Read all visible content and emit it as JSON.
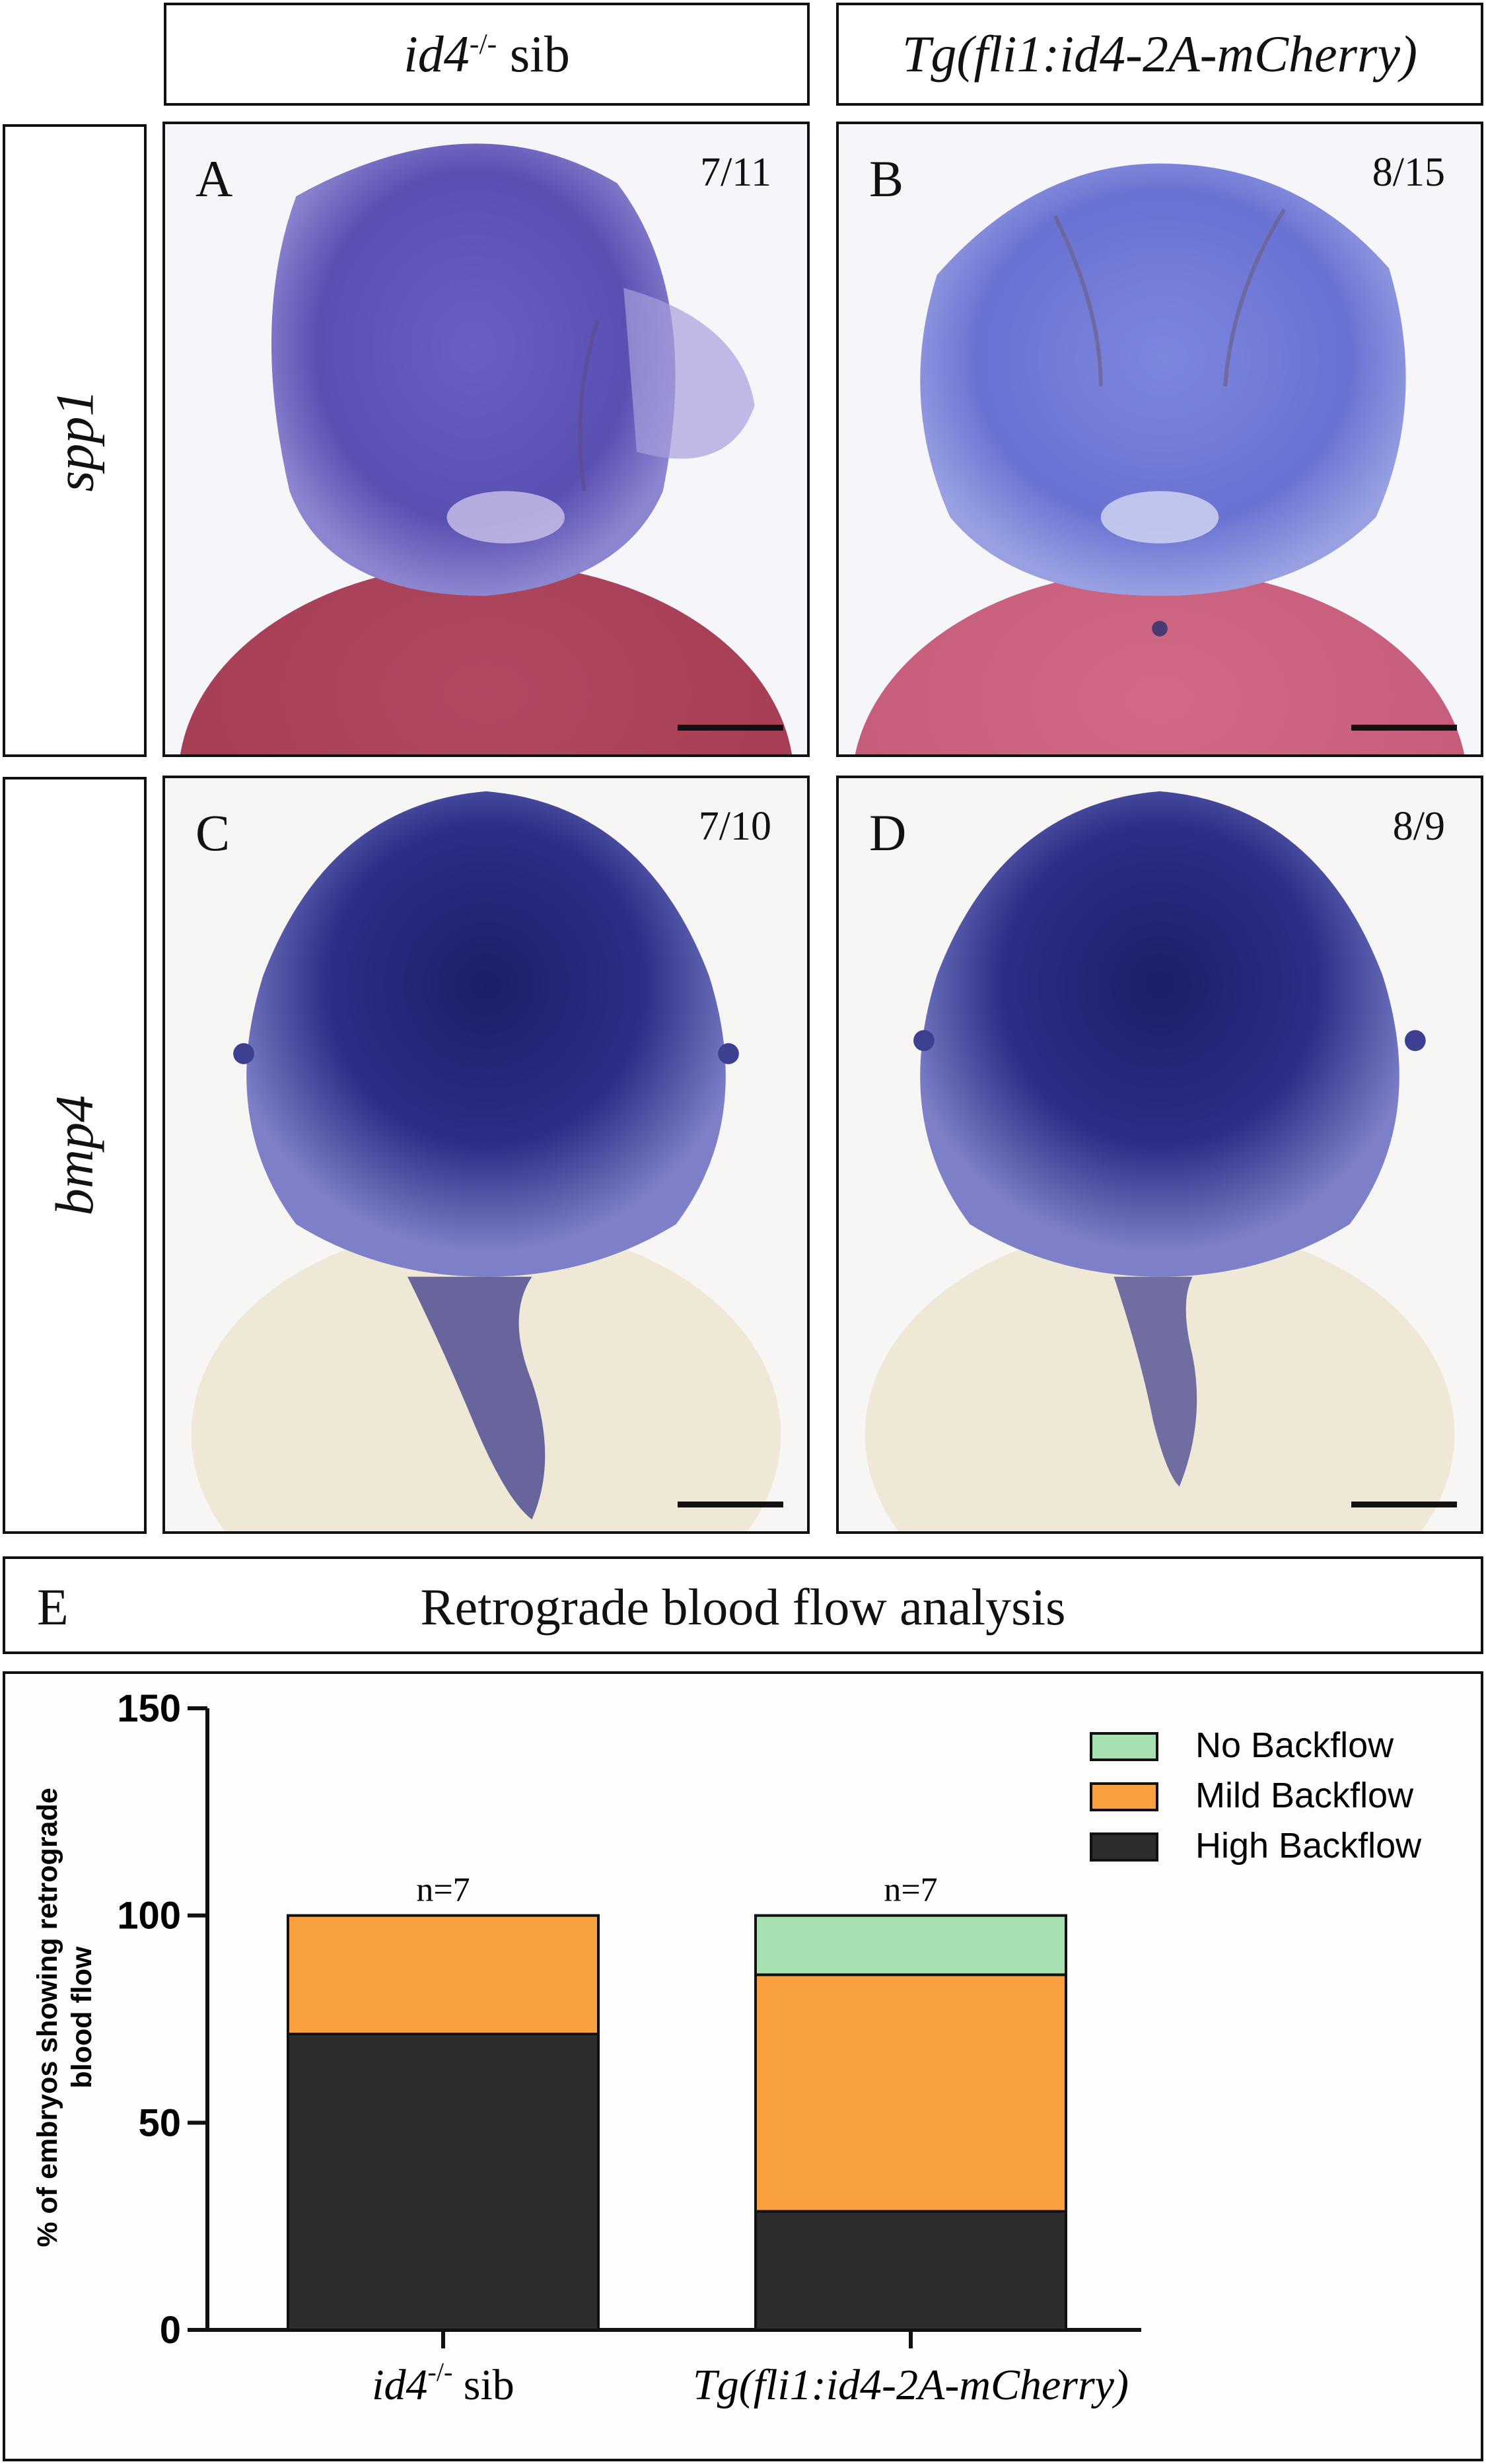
{
  "columns": [
    {
      "gene_italic": "id4",
      "sup": "-/-",
      "rest": " sib"
    },
    {
      "italic": "Tg(fli1:id4-2A-mCherry)"
    }
  ],
  "rows": [
    "spp1",
    "bmp4"
  ],
  "panels": [
    {
      "label": "A",
      "fraction": "7/11"
    },
    {
      "label": "B",
      "fraction": "8/15"
    },
    {
      "label": "C",
      "fraction": "7/10"
    },
    {
      "label": "D",
      "fraction": "8/9"
    }
  ],
  "panel_e": {
    "label": "E",
    "title": "Retrograde blood flow analysis"
  },
  "chart_data": {
    "type": "bar",
    "stacked": true,
    "ylabel": "% of embryos showing retrograde blood flow",
    "ylim": [
      0,
      150
    ],
    "yticks": [
      0,
      50,
      100,
      150
    ],
    "categories": [
      "id4-/- sib",
      "Tg(fli1:id4-2A-mCherry)"
    ],
    "series": [
      {
        "name": "High Backflow",
        "color": "#2d2d2d",
        "values": [
          71.4,
          28.6
        ]
      },
      {
        "name": "Mild Backflow",
        "color": "#f9a040",
        "values": [
          28.6,
          57.1
        ]
      },
      {
        "name": "No Backflow",
        "color": "#a6dfb0",
        "values": [
          0,
          14.3
        ]
      }
    ],
    "annotations": [
      "n=7",
      "n=7"
    ],
    "legend_order": [
      "No Backflow",
      "Mild Backflow",
      "High Backflow"
    ],
    "legend_position": "top-right"
  }
}
